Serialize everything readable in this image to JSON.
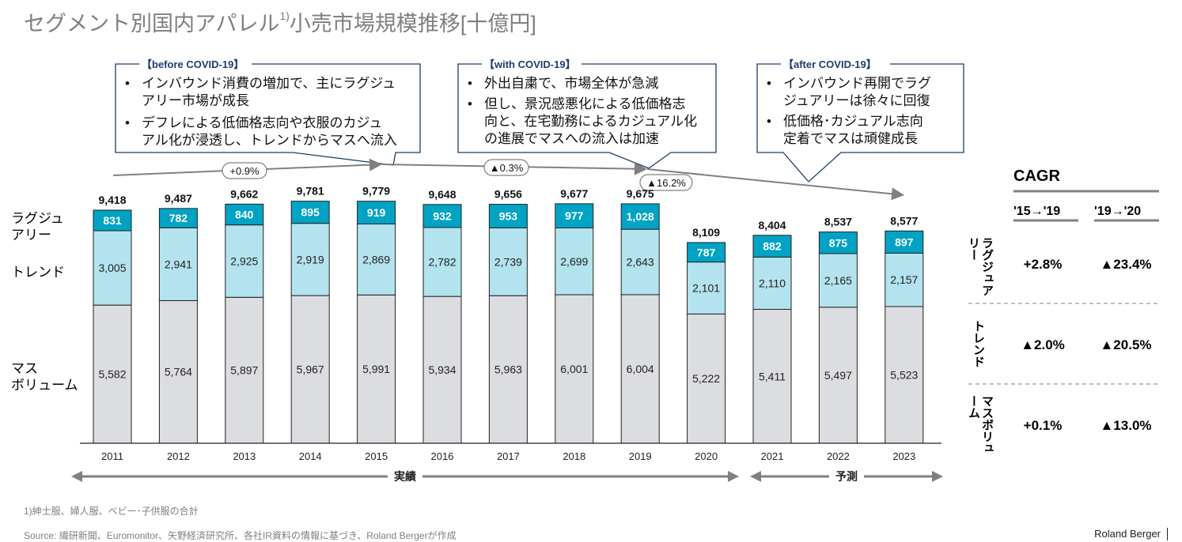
{
  "title": {
    "main": "セグメント別国内アパレル",
    "sup": "1)",
    "rest": "小売市場規模推移[十億円]"
  },
  "callouts": [
    {
      "heading": "【before COVID-19】",
      "bullets": [
        [
          "インバウンド消費の増加で、主にラグジュ",
          "アリー市場が成長"
        ],
        [
          "デフレによる低価格志向や衣服のカジュ",
          "アル化が浸透し、トレンドからマスへ流入"
        ]
      ]
    },
    {
      "heading": "【with COVID-19】",
      "bullets": [
        [
          "外出自粛で、市場全体が急減"
        ],
        [
          "但し、景況感悪化による低価格志",
          "向と、在宅勤務によるカジュアル化",
          "の進展でマスへの流入は加速"
        ]
      ]
    },
    {
      "heading": "【after COVID-19】",
      "bullets": [
        [
          "インバウンド再開でラグ",
          "ジュアリーは徐々に回復"
        ],
        [
          "低価格･カジュアル志向",
          "定着でマスは頑健成長"
        ]
      ]
    }
  ],
  "trend_badges": [
    "+0.9%",
    "▲0.3%",
    "▲16.2%"
  ],
  "segment_labels": {
    "luxury": [
      "ラグジュ",
      "アリー"
    ],
    "trend": [
      "トレンド"
    ],
    "mass": [
      "マス",
      "ボリューム"
    ]
  },
  "period_labels": {
    "actual": "実績",
    "forecast": "予測"
  },
  "chart_data": {
    "type": "bar",
    "stacked": true,
    "title": "セグメント別国内アパレル小売市場規模推移[十億円]",
    "unit": "十億円",
    "categories": [
      "2011",
      "2012",
      "2013",
      "2014",
      "2015",
      "2016",
      "2017",
      "2018",
      "2019",
      "2020",
      "2021",
      "2022",
      "2023"
    ],
    "series": [
      {
        "name": "マスボリューム",
        "color": "#dcdde0",
        "values": [
          5582,
          5764,
          5897,
          5967,
          5991,
          5934,
          5963,
          6001,
          6004,
          5222,
          5411,
          5497,
          5523
        ]
      },
      {
        "name": "トレンド",
        "color": "#b3e3ee",
        "values": [
          3005,
          2941,
          2925,
          2919,
          2869,
          2782,
          2739,
          2699,
          2643,
          2101,
          2110,
          2165,
          2157
        ]
      },
      {
        "name": "ラグジュアリー",
        "color": "#00a3c4",
        "values": [
          831,
          782,
          840,
          895,
          919,
          932,
          953,
          977,
          1028,
          787,
          882,
          875,
          897
        ]
      }
    ],
    "totals": [
      9418,
      9487,
      9662,
      9781,
      9779,
      9648,
      9656,
      9677,
      9675,
      8109,
      8404,
      8537,
      8577
    ],
    "actual_range": [
      "2011",
      "2020"
    ],
    "forecast_range": [
      "2021",
      "2023"
    ],
    "ylim": [
      0,
      10000
    ],
    "grid": false,
    "legend": "left"
  },
  "cagr": {
    "heading": "CAGR",
    "columns": [
      "'15→'19",
      "'19→'20"
    ],
    "rows": [
      {
        "label": "ラグジュアリー",
        "values": [
          "+2.8%",
          "▲23.4%"
        ]
      },
      {
        "label": "トレンド",
        "values": [
          "▲2.0%",
          "▲20.5%"
        ]
      },
      {
        "label": "マスボリューム",
        "values": [
          "+0.1%",
          "▲13.0%"
        ]
      }
    ]
  },
  "footnote": "1)紳士服、婦人服、ベビー･子供服の合計",
  "source": "Source: 繊研新聞、Euromonitor、矢野経済研究所、各社IR資料の情報に基づき、Roland Bergerが作成",
  "brand": "Roland Berger"
}
